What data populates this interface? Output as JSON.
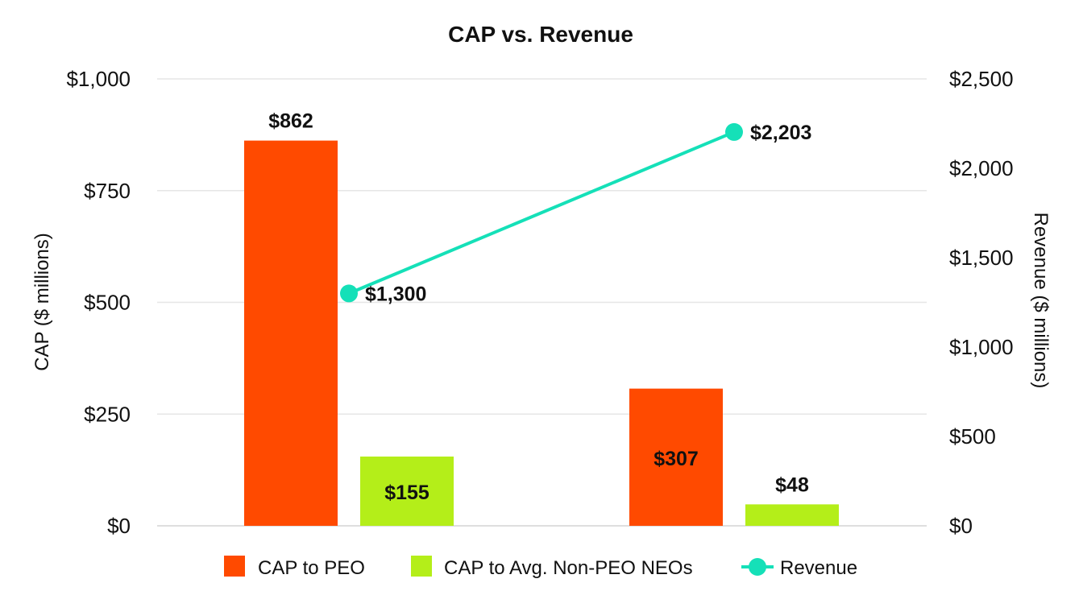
{
  "chart_data": {
    "type": "bar",
    "title": "CAP vs. Revenue",
    "categories": [
      "",
      ""
    ],
    "series": [
      {
        "name": "CAP to PEO",
        "kind": "bar",
        "axis": "left",
        "color": "#FF4A00",
        "values": [
          862,
          307
        ],
        "labels": [
          "$862",
          "$307"
        ],
        "label_position": [
          "above",
          "inside"
        ]
      },
      {
        "name": "CAP to Avg. Non-PEO NEOs",
        "kind": "bar",
        "axis": "left",
        "color": "#B4EE19",
        "values": [
          155,
          48
        ],
        "labels": [
          "$155",
          "$48"
        ],
        "label_position": [
          "inside",
          "above"
        ]
      },
      {
        "name": "Revenue",
        "kind": "line",
        "axis": "right",
        "color": "#15E0B8",
        "values": [
          1300,
          2203
        ],
        "labels": [
          "$1,300",
          "$2,203"
        ]
      }
    ],
    "left_axis": {
      "label": "CAP ($ millions)",
      "ylim": [
        0,
        1000
      ],
      "ticks": [
        0,
        250,
        500,
        750,
        1000
      ],
      "tick_labels": [
        "$0",
        "$250",
        "$500",
        "$750",
        "$1,000"
      ]
    },
    "right_axis": {
      "label": "Revenue ($ millions)",
      "ylim": [
        0,
        2500
      ],
      "ticks": [
        0,
        500,
        1000,
        1500,
        2000,
        2500
      ],
      "tick_labels": [
        "$0",
        "$500",
        "$1,000",
        "$1,500",
        "$2,000",
        "$2,500"
      ]
    },
    "grid": true,
    "legend_position": "bottom"
  }
}
